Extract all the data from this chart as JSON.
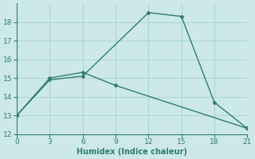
{
  "line1_x": [
    0,
    3,
    6,
    12,
    15,
    18,
    21
  ],
  "line1_y": [
    13.0,
    14.9,
    15.1,
    18.5,
    18.3,
    13.7,
    12.3
  ],
  "line2_x": [
    0,
    3,
    6,
    9,
    21
  ],
  "line2_y": [
    13.0,
    15.0,
    15.3,
    14.6,
    12.3
  ],
  "color": "#2e7d6e",
  "bg_color": "#cce8e8",
  "grid_color": "#aad4d4",
  "xlabel": "Humidex (Indice chaleur)",
  "xlim": [
    0,
    21
  ],
  "ylim": [
    12,
    19
  ],
  "xticks": [
    0,
    3,
    6,
    9,
    12,
    15,
    18,
    21
  ],
  "yticks": [
    12,
    13,
    14,
    15,
    16,
    17,
    18
  ],
  "marker": "D",
  "markersize": 2.5,
  "linewidth": 1.0
}
